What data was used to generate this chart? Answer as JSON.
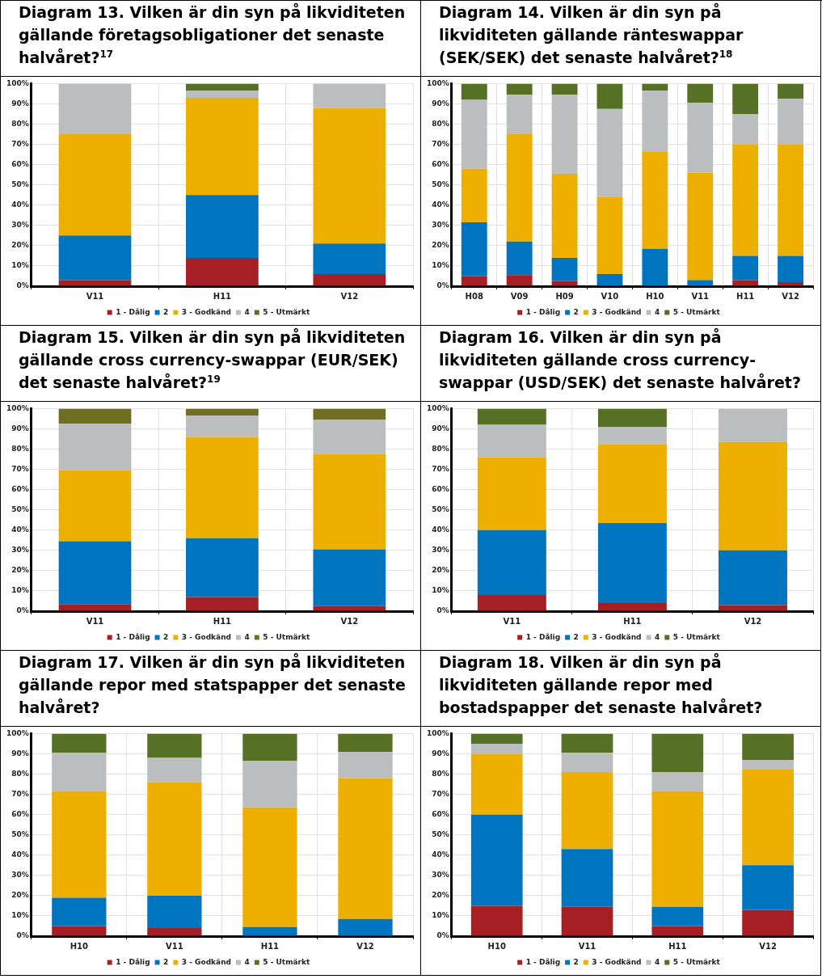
{
  "chart_data": [
    {
      "type": "bar",
      "title": "Diagram 13. Vilken är din syn på likviditeten gällande företagsobligationer det senaste halvåret?$^{17}$",
      "categories": [
        "V11",
        "H11",
        "V12"
      ],
      "stacked": true,
      "ylim": [
        0,
        100
      ],
      "yticks": [
        {
          "value": 0,
          "label": "0%"
        },
        {
          "value": 10,
          "label": "10%"
        },
        {
          "value": 20,
          "label": "20%"
        },
        {
          "value": 30,
          "label": "30%"
        },
        {
          "value": 40,
          "label": "40%"
        },
        {
          "value": 50,
          "label": "50%"
        },
        {
          "value": 60,
          "label": "60%"
        },
        {
          "value": 70,
          "label": "70%"
        },
        {
          "value": 80,
          "label": "80%"
        },
        {
          "value": 90,
          "label": "90%"
        },
        {
          "value": 100,
          "label": "100%"
        }
      ],
      "grid": true,
      "legend": "bottom",
      "series": [
        {
          "name": "1 - Dålig",
          "color": "#a51f24",
          "values": [
            3,
            14,
            6
          ]
        },
        {
          "name": "2",
          "color": "#0075bf",
          "values": [
            22,
            31,
            15
          ]
        },
        {
          "name": "3 - Godkänd",
          "color": "#edb000",
          "values": [
            50,
            48,
            67
          ]
        },
        {
          "name": "4",
          "color": "#bcbdbf",
          "values": [
            25,
            3.5,
            12
          ]
        },
        {
          "name": "5 - Utmärkt",
          "color": "#567126",
          "values": [
            0,
            3.5,
            0
          ]
        }
      ]
    },
    {
      "type": "bar",
      "title": "Diagram 14. Vilken är din syn på likviditeten gällande ränteswappar (SEK/SEK) det senaste halvåret?$^{18}$",
      "categories": [
        "H08",
        "V09",
        "H09",
        "V10",
        "H10",
        "V11",
        "H11",
        "V12"
      ],
      "stacked": true,
      "ylim": [
        0,
        100
      ],
      "yticks": [
        {
          "value": 0,
          "label": "0%"
        },
        {
          "value": 10,
          "label": "10%"
        },
        {
          "value": 20,
          "label": "20%"
        },
        {
          "value": 30,
          "label": "30%"
        },
        {
          "value": 40,
          "label": "40%"
        },
        {
          "value": 50,
          "label": "50%"
        },
        {
          "value": 60,
          "label": "60%"
        },
        {
          "value": 70,
          "label": "70%"
        },
        {
          "value": 80,
          "label": "80%"
        },
        {
          "value": 90,
          "label": "90%"
        },
        {
          "value": 100,
          "label": "100%"
        }
      ],
      "grid": true,
      "legend": "bottom",
      "series": [
        {
          "name": "1 - Dålig",
          "color": "#a51f24",
          "values": [
            5,
            5.5,
            2.5,
            0,
            0,
            0,
            3,
            2
          ]
        },
        {
          "name": "2",
          "color": "#0075bf",
          "values": [
            26.5,
            16.5,
            11.5,
            6,
            18.5,
            3,
            12,
            13
          ]
        },
        {
          "name": "3 - Godkänd",
          "color": "#edb000",
          "values": [
            26.5,
            53,
            41.5,
            38,
            48,
            53,
            55,
            55
          ]
        },
        {
          "name": "4",
          "color": "#bcbdbf",
          "values": [
            34,
            19.5,
            39,
            43.5,
            30,
            34.5,
            15,
            22.5
          ]
        },
        {
          "name": "5 - Utmärkt",
          "color": "#567126",
          "values": [
            8,
            5.5,
            5.5,
            12.5,
            3.5,
            9.5,
            15,
            7.5
          ]
        }
      ]
    },
    {
      "type": "bar",
      "title": "Diagram 15. Vilken är din syn på likviditeten gällande cross currency-swappar (EUR/SEK) det senaste halvåret?$^{19}$",
      "categories": [
        "V11",
        "H11",
        "V12"
      ],
      "stacked": true,
      "ylim": [
        0,
        100
      ],
      "yticks": [
        {
          "value": 0,
          "label": "0%"
        },
        {
          "value": 10,
          "label": "10%"
        },
        {
          "value": 20,
          "label": "20%"
        },
        {
          "value": 30,
          "label": "30%"
        },
        {
          "value": 40,
          "label": "40%"
        },
        {
          "value": 50,
          "label": "50%"
        },
        {
          "value": 60,
          "label": "60%"
        },
        {
          "value": 70,
          "label": "70%"
        },
        {
          "value": 80,
          "label": "80%"
        },
        {
          "value": 90,
          "label": "90%"
        },
        {
          "value": 100,
          "label": "100%"
        }
      ],
      "grid": true,
      "legend": "bottom",
      "series": [
        {
          "name": "1 - Dålig",
          "color": "#a51f24",
          "values": [
            3.5,
            7,
            2.5
          ]
        },
        {
          "name": "2",
          "color": "#0075bf",
          "values": [
            31,
            29,
            28
          ]
        },
        {
          "name": "3 - Godkänd",
          "color": "#edb000",
          "values": [
            35,
            50,
            47
          ]
        },
        {
          "name": "4",
          "color": "#bcbdbf",
          "values": [
            23,
            10.5,
            17
          ]
        },
        {
          "name": "5 - Utmärkt",
          "color": "#6f6e22",
          "values": [
            7.5,
            3.5,
            5.5
          ]
        }
      ]
    },
    {
      "type": "bar",
      "title": "Diagram 16. Vilken är din syn på likviditeten gällande cross currency-swappar (USD/SEK) det senaste halvåret?",
      "categories": [
        "V11",
        "H11",
        "V12"
      ],
      "stacked": true,
      "ylim": [
        0,
        100
      ],
      "yticks": [
        {
          "value": 0,
          "label": "0%"
        },
        {
          "value": 10,
          "label": "10%"
        },
        {
          "value": 20,
          "label": "20%"
        },
        {
          "value": 30,
          "label": "30%"
        },
        {
          "value": 40,
          "label": "40%"
        },
        {
          "value": 50,
          "label": "50%"
        },
        {
          "value": 60,
          "label": "60%"
        },
        {
          "value": 70,
          "label": "70%"
        },
        {
          "value": 80,
          "label": "80%"
        },
        {
          "value": 90,
          "label": "90%"
        },
        {
          "value": 100,
          "label": "100%"
        }
      ],
      "grid": true,
      "legend": "bottom",
      "series": [
        {
          "name": "1 - Dålig",
          "color": "#a51f24",
          "values": [
            8,
            4,
            3
          ]
        },
        {
          "name": "2",
          "color": "#0075bf",
          "values": [
            32,
            39.5,
            27
          ]
        },
        {
          "name": "3 - Godkänd",
          "color": "#edb000",
          "values": [
            36,
            39,
            53.5
          ]
        },
        {
          "name": "4",
          "color": "#bcbdbf",
          "values": [
            16,
            8.5,
            16.5
          ]
        },
        {
          "name": "5 - Utmärkt",
          "color": "#567126",
          "values": [
            8,
            9,
            0
          ]
        }
      ]
    },
    {
      "type": "bar",
      "title": "Diagram 17. Vilken är din syn på likviditeten gällande repor med statspapper det senaste halvåret?",
      "categories": [
        "H10",
        "V11",
        "H11",
        "V12"
      ],
      "stacked": true,
      "ylim": [
        0,
        100
      ],
      "yticks": [
        {
          "value": 0,
          "label": "0%"
        },
        {
          "value": 10,
          "label": "10%"
        },
        {
          "value": 20,
          "label": "20%"
        },
        {
          "value": 30,
          "label": "30%"
        },
        {
          "value": 40,
          "label": "40%"
        },
        {
          "value": 50,
          "label": "50%"
        },
        {
          "value": 60,
          "label": "60%"
        },
        {
          "value": 70,
          "label": "70%"
        },
        {
          "value": 80,
          "label": "80%"
        },
        {
          "value": 90,
          "label": "90%"
        },
        {
          "value": 100,
          "label": "100%"
        }
      ],
      "grid": true,
      "legend": "bottom",
      "series": [
        {
          "name": "1 - Dålig",
          "color": "#a51f24",
          "values": [
            5,
            4,
            0,
            0
          ]
        },
        {
          "name": "2",
          "color": "#0075bf",
          "values": [
            14,
            16,
            4.5,
            8.5
          ]
        },
        {
          "name": "3 - Godkänd",
          "color": "#edb000",
          "values": [
            52.5,
            56,
            59,
            69.5
          ]
        },
        {
          "name": "4",
          "color": "#bcbdbf",
          "values": [
            19,
            12,
            23,
            13
          ]
        },
        {
          "name": "5 - Utmärkt",
          "color": "#567126",
          "values": [
            9.5,
            12,
            13.5,
            9
          ]
        }
      ]
    },
    {
      "type": "bar",
      "title": "Diagram 18. Vilken är din syn på likviditeten gällande repor med bostadspapper det senaste halvåret?",
      "categories": [
        "H10",
        "V11",
        "H11",
        "V12"
      ],
      "stacked": true,
      "ylim": [
        0,
        100
      ],
      "yticks": [
        {
          "value": 0,
          "label": "0%"
        },
        {
          "value": 10,
          "label": "10%"
        },
        {
          "value": 20,
          "label": "20%"
        },
        {
          "value": 30,
          "label": "30%"
        },
        {
          "value": 40,
          "label": "40%"
        },
        {
          "value": 50,
          "label": "50%"
        },
        {
          "value": 60,
          "label": "60%"
        },
        {
          "value": 70,
          "label": "70%"
        },
        {
          "value": 80,
          "label": "80%"
        },
        {
          "value": 90,
          "label": "90%"
        },
        {
          "value": 100,
          "label": "100%"
        }
      ],
      "grid": true,
      "legend": "bottom",
      "series": [
        {
          "name": "1 - Dålig",
          "color": "#a51f24",
          "values": [
            15,
            14.5,
            5,
            13
          ]
        },
        {
          "name": "2",
          "color": "#0075bf",
          "values": [
            45,
            28.5,
            9.5,
            22
          ]
        },
        {
          "name": "3 - Godkänd",
          "color": "#edb000",
          "values": [
            30,
            38,
            57,
            47.5
          ]
        },
        {
          "name": "4",
          "color": "#bcbdbf",
          "values": [
            5,
            9.5,
            9.5,
            4.5
          ]
        },
        {
          "name": "5 - Utmärkt",
          "color": "#567126",
          "values": [
            5,
            9.5,
            19,
            13
          ]
        }
      ]
    }
  ]
}
